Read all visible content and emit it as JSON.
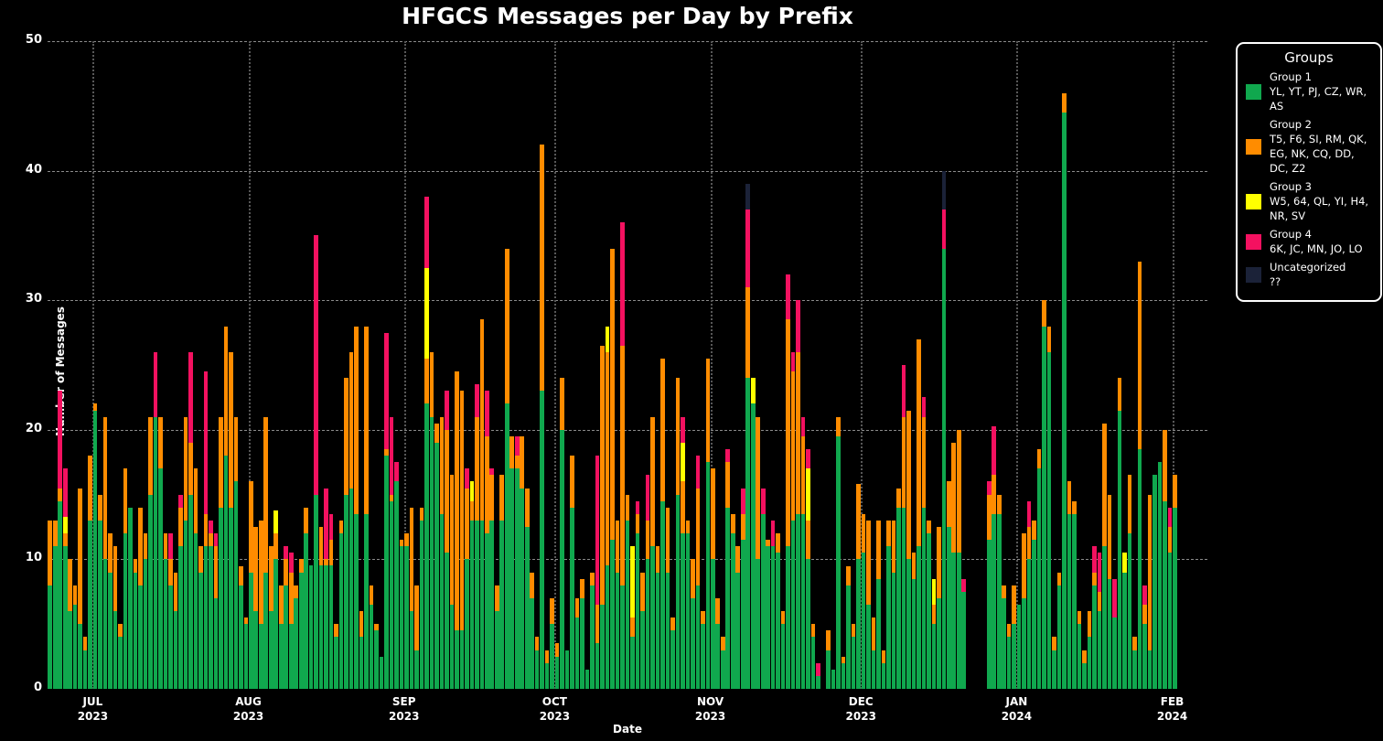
{
  "title": "HFGCS Messages per Day by Prefix",
  "axes": {
    "xlabel": "Date",
    "ylabel": "Number of Messages"
  },
  "legend": {
    "title": "Groups",
    "entries": [
      {
        "name": "Group 1",
        "prefixes": "YL, YT, PJ, CZ, WR, AS",
        "color": "#10a84e"
      },
      {
        "name": "Group 2",
        "prefixes": "T5, F6, SI, RM, QK, EG, NK, CQ, DD, DC, Z2",
        "color": "#ff8c00"
      },
      {
        "name": "Group 3",
        "prefixes": "W5, 64, QL, YI, H4, NR, SV",
        "color": "#ffff00"
      },
      {
        "name": "Group 4",
        "prefixes": "6K, JC, MN, JO, LO",
        "color": "#f41160"
      },
      {
        "name": "Uncategorized",
        "prefixes": "??",
        "color": "#1b2238"
      }
    ]
  },
  "chart_data": {
    "type": "bar",
    "stacked": true,
    "title": "HFGCS Messages per Day by Prefix",
    "xlabel": "Date",
    "ylabel": "Number of Messages",
    "ylim": [
      0,
      50
    ],
    "y_ticks": [
      0,
      10,
      20,
      30,
      40,
      50
    ],
    "grid": true,
    "legend_position": "right",
    "axis_days": 231,
    "x_ticks": [
      {
        "label": "JUL",
        "year": "2023",
        "day": 9
      },
      {
        "label": "AUG",
        "year": "2023",
        "day": 40
      },
      {
        "label": "SEP",
        "year": "2023",
        "day": 71
      },
      {
        "label": "OCT",
        "year": "2023",
        "day": 101
      },
      {
        "label": "NOV",
        "year": "2023",
        "day": 132
      },
      {
        "label": "DEC",
        "year": "2023",
        "day": 162
      },
      {
        "label": "JAN",
        "year": "2024",
        "day": 193
      },
      {
        "label": "FEB",
        "year": "2024",
        "day": 224
      }
    ],
    "series_names": [
      "Group 1",
      "Group 2",
      "Group 3",
      "Group 4",
      "Uncategorized"
    ],
    "series_colors": [
      "#10a84e",
      "#ff8c00",
      "#ffff00",
      "#f41160",
      "#1b2238"
    ],
    "days": [
      [
        8,
        5,
        0,
        0,
        0
      ],
      [
        11,
        2,
        0,
        0,
        0
      ],
      [
        14.5,
        1,
        0,
        7.5,
        0
      ],
      [
        11,
        1,
        1.3,
        3.7,
        0
      ],
      [
        6,
        4,
        0,
        0,
        0
      ],
      [
        6.5,
        1.5,
        0,
        0,
        0
      ],
      [
        5,
        10.5,
        0,
        0,
        0
      ],
      [
        3,
        1,
        0,
        0,
        0
      ],
      [
        13,
        5,
        0,
        0,
        0
      ],
      [
        21.5,
        0.5,
        0,
        0,
        0
      ],
      [
        13,
        2,
        0,
        0,
        0
      ],
      [
        10,
        11,
        0,
        0,
        0
      ],
      [
        9,
        3,
        0,
        0,
        0
      ],
      [
        6,
        5,
        0,
        0,
        0
      ],
      [
        4,
        1,
        0,
        0,
        0
      ],
      [
        12,
        5,
        0,
        0,
        0
      ],
      [
        14,
        0,
        0,
        0,
        0
      ],
      [
        9,
        1,
        0,
        0,
        0
      ],
      [
        8,
        6,
        0,
        0,
        0
      ],
      [
        10,
        2,
        0,
        0,
        0
      ],
      [
        15,
        6,
        0,
        0,
        0
      ],
      [
        21,
        0,
        0,
        5,
        0
      ],
      [
        17,
        4,
        0,
        0,
        0
      ],
      [
        10,
        2,
        0,
        0,
        0
      ],
      [
        8,
        2,
        0,
        2,
        0
      ],
      [
        6,
        3,
        0,
        0,
        0
      ],
      [
        11,
        3,
        0,
        1,
        0
      ],
      [
        13,
        8,
        0,
        0,
        0
      ],
      [
        15,
        4,
        0,
        7,
        0
      ],
      [
        12,
        5,
        0,
        0,
        0
      ],
      [
        9,
        2,
        0,
        0,
        0
      ],
      [
        11,
        2.5,
        0,
        11,
        0
      ],
      [
        11,
        1,
        0,
        1,
        0
      ],
      [
        7,
        4,
        0,
        1,
        0
      ],
      [
        14,
        7,
        0,
        0,
        0
      ],
      [
        18,
        10,
        0,
        0,
        0
      ],
      [
        14,
        12,
        0,
        0,
        0
      ],
      [
        16,
        5,
        0,
        0,
        0
      ],
      [
        8,
        1.5,
        0,
        0,
        0
      ],
      [
        5,
        0.5,
        0,
        0,
        0
      ],
      [
        9,
        7,
        0,
        0,
        0
      ],
      [
        6,
        6.5,
        0,
        0,
        0
      ],
      [
        5,
        8,
        0,
        0,
        0
      ],
      [
        9,
        12,
        0,
        0,
        0
      ],
      [
        6,
        5,
        0,
        0,
        0
      ],
      [
        10,
        2,
        1.8,
        0,
        0
      ],
      [
        5,
        3,
        0,
        0,
        0
      ],
      [
        8,
        2,
        0,
        1,
        0
      ],
      [
        5,
        4,
        0,
        1.5,
        0
      ],
      [
        7,
        1,
        0,
        0,
        0
      ],
      [
        9,
        1,
        0,
        0,
        0
      ],
      [
        12,
        2,
        0,
        0,
        0
      ],
      [
        9.5,
        0,
        0,
        0,
        0
      ],
      [
        15,
        0,
        0,
        20,
        0
      ],
      [
        9.5,
        3,
        0,
        0,
        0
      ],
      [
        9.5,
        0.5,
        0,
        5.5,
        0
      ],
      [
        9.5,
        2,
        0,
        2,
        0
      ],
      [
        4,
        1,
        0,
        0,
        0
      ],
      [
        12,
        1,
        0,
        0,
        0
      ],
      [
        15,
        9,
        0,
        0,
        0
      ],
      [
        15.5,
        10.5,
        0,
        0,
        0
      ],
      [
        13.5,
        14.5,
        0,
        0,
        0
      ],
      [
        4,
        2,
        0,
        0,
        0
      ],
      [
        13.5,
        14.5,
        0,
        0,
        0
      ],
      [
        6.5,
        1.5,
        0,
        0,
        0
      ],
      [
        4.5,
        0.5,
        0,
        0,
        0
      ],
      [
        2.5,
        0,
        0,
        0,
        0
      ],
      [
        18,
        0.5,
        0,
        9,
        0
      ],
      [
        14.5,
        0.5,
        0,
        6,
        0
      ],
      [
        16,
        0,
        0,
        1.5,
        0
      ],
      [
        11,
        0.5,
        0,
        0,
        0
      ],
      [
        11,
        1,
        0,
        0,
        0
      ],
      [
        6,
        8,
        0,
        0,
        0
      ],
      [
        3,
        5,
        0,
        0,
        0
      ],
      [
        13,
        1,
        0,
        0,
        0
      ],
      [
        22,
        3.5,
        7,
        5.5,
        0
      ],
      [
        21,
        5,
        0,
        0,
        0
      ],
      [
        19,
        1.5,
        0,
        0,
        0
      ],
      [
        13.5,
        7.5,
        0,
        0,
        0
      ],
      [
        10.5,
        9.5,
        0,
        3,
        0
      ],
      [
        6.5,
        10,
        0,
        0,
        0
      ],
      [
        4.5,
        20,
        0,
        0,
        0
      ],
      [
        4.5,
        18.5,
        0,
        0,
        0
      ],
      [
        10,
        5.5,
        0,
        1.5,
        0
      ],
      [
        13,
        1.5,
        1.5,
        0,
        0
      ],
      [
        13,
        8,
        0,
        2.5,
        0
      ],
      [
        13,
        15.5,
        0,
        0,
        0
      ],
      [
        12,
        7.5,
        0,
        3.5,
        0
      ],
      [
        13,
        3.5,
        0,
        0.5,
        0
      ],
      [
        6,
        2,
        0,
        0,
        0
      ],
      [
        13,
        3.5,
        0,
        0,
        0
      ],
      [
        22,
        12,
        0,
        0,
        0
      ],
      [
        17,
        2.5,
        0,
        0,
        0
      ],
      [
        17,
        1,
        0,
        1.5,
        0
      ],
      [
        15.5,
        4,
        0,
        0,
        0
      ],
      [
        12.5,
        3,
        0,
        0,
        0
      ],
      [
        7,
        2,
        0,
        0,
        0
      ],
      [
        3,
        1,
        0,
        0,
        0
      ],
      [
        23,
        19,
        0,
        0,
        0
      ],
      [
        2,
        1,
        0,
        0,
        0
      ],
      [
        5,
        2,
        0,
        0,
        0
      ],
      [
        2.5,
        1,
        0,
        0,
        0
      ],
      [
        20,
        4,
        0,
        0,
        0
      ],
      [
        3,
        0,
        0,
        0,
        0
      ],
      [
        14,
        4,
        0,
        0,
        0
      ],
      [
        5.5,
        1.5,
        0,
        0,
        0
      ],
      [
        7,
        1.5,
        0,
        0,
        0
      ],
      [
        1.5,
        0,
        0,
        0,
        0
      ],
      [
        8,
        1,
        0,
        0,
        0
      ],
      [
        3.5,
        3,
        0,
        11.5,
        0
      ],
      [
        6.5,
        20,
        0,
        0,
        0
      ],
      [
        9.5,
        16.5,
        2,
        0,
        0
      ],
      [
        11.5,
        22.5,
        0,
        0,
        0
      ],
      [
        9,
        4,
        0,
        0,
        0
      ],
      [
        8,
        18.5,
        0,
        9.5,
        0
      ],
      [
        13,
        2,
        0,
        0,
        0
      ],
      [
        4,
        1.5,
        5.5,
        0,
        0
      ],
      [
        12,
        1.5,
        0,
        1,
        0
      ],
      [
        6,
        3,
        0,
        0,
        0
      ],
      [
        10,
        3,
        0,
        3.5,
        0
      ],
      [
        11,
        10,
        0,
        0,
        0
      ],
      [
        9,
        2,
        0,
        0,
        0
      ],
      [
        14.5,
        11,
        0,
        0,
        0
      ],
      [
        9,
        5,
        0,
        0,
        0
      ],
      [
        4.5,
        1,
        0,
        0,
        0
      ],
      [
        15,
        9,
        0,
        0,
        0
      ],
      [
        12,
        4,
        3,
        2,
        0
      ],
      [
        12,
        1,
        0,
        0,
        0
      ],
      [
        7,
        3,
        0,
        0,
        0
      ],
      [
        8,
        7.5,
        0,
        2.5,
        0
      ],
      [
        5,
        1,
        0,
        0,
        0
      ],
      [
        17.5,
        8,
        0,
        0,
        0
      ],
      [
        10,
        7,
        0,
        0,
        0
      ],
      [
        5,
        2,
        0,
        0,
        0
      ],
      [
        3,
        1,
        0,
        0,
        0
      ],
      [
        14,
        3.5,
        0,
        1,
        0
      ],
      [
        12,
        1.5,
        0,
        0,
        0
      ],
      [
        9,
        2,
        0,
        0,
        0
      ],
      [
        11.5,
        2,
        0,
        2,
        0
      ],
      [
        24,
        7,
        0,
        6,
        2
      ],
      [
        22,
        0,
        2,
        0,
        0
      ],
      [
        10,
        11,
        0,
        0,
        0
      ],
      [
        13.5,
        0,
        0,
        2,
        0
      ],
      [
        11,
        0.5,
        0,
        0,
        0
      ],
      [
        11,
        0,
        0,
        2,
        0
      ],
      [
        10.5,
        1.5,
        0,
        0,
        0
      ],
      [
        5,
        1,
        0,
        0,
        0
      ],
      [
        11,
        17.5,
        0,
        3.5,
        0
      ],
      [
        13,
        11.5,
        0,
        1.5,
        0
      ],
      [
        13.5,
        12.5,
        0,
        4,
        0
      ],
      [
        13.5,
        6,
        0,
        1.5,
        0
      ],
      [
        10,
        3,
        4,
        1.5,
        0
      ],
      [
        4,
        1,
        0,
        0,
        0
      ],
      [
        1,
        0,
        0,
        1,
        0
      ],
      [
        0,
        0,
        0,
        0,
        0
      ],
      [
        3,
        1.5,
        0,
        0,
        0
      ],
      [
        1.5,
        0,
        0,
        0,
        0
      ],
      [
        19.5,
        1.5,
        0,
        0,
        0
      ],
      [
        2,
        0.5,
        0,
        0,
        0
      ],
      [
        8,
        1.5,
        0,
        0,
        0
      ],
      [
        4,
        1,
        0,
        0,
        0
      ],
      [
        10,
        5.8,
        0,
        0,
        0
      ],
      [
        10.5,
        3,
        0,
        0,
        0
      ],
      [
        6.5,
        6.5,
        0,
        0,
        0
      ],
      [
        3,
        2.5,
        0,
        0,
        0
      ],
      [
        8.5,
        4.5,
        0,
        0,
        0
      ],
      [
        2,
        1,
        0,
        0,
        0
      ],
      [
        11,
        2,
        0,
        0,
        0
      ],
      [
        9,
        4,
        0,
        0,
        0
      ],
      [
        14,
        1.5,
        0,
        0,
        0
      ],
      [
        14,
        7,
        0,
        4,
        0
      ],
      [
        10,
        11.5,
        0,
        0,
        0
      ],
      [
        8.5,
        2,
        0,
        0,
        0
      ],
      [
        11,
        16,
        0,
        0,
        0
      ],
      [
        14,
        7,
        0,
        1.5,
        0
      ],
      [
        12,
        1,
        0,
        0,
        0
      ],
      [
        5,
        1.5,
        2,
        0,
        0
      ],
      [
        7,
        5.5,
        0,
        0,
        0
      ],
      [
        34,
        0,
        0,
        3,
        3
      ],
      [
        12.5,
        3.5,
        0,
        0,
        0
      ],
      [
        10.5,
        8.5,
        0,
        0,
        0
      ],
      [
        10.5,
        9.5,
        0,
        0,
        0
      ],
      [
        7.5,
        0,
        0,
        1,
        0
      ],
      [
        0,
        0,
        0,
        0,
        0
      ],
      [
        0,
        0,
        0,
        0,
        0
      ],
      [
        0,
        0,
        0,
        0,
        0
      ],
      [
        0,
        0,
        0,
        0,
        0
      ],
      [
        11.5,
        3.5,
        0,
        1,
        0
      ],
      [
        13.5,
        3,
        0,
        3.8,
        0
      ],
      [
        13.5,
        1.5,
        0,
        0,
        0
      ],
      [
        7,
        1,
        0,
        0,
        0
      ],
      [
        4,
        1,
        0,
        0,
        0
      ],
      [
        5,
        3,
        0,
        0,
        0
      ],
      [
        6.5,
        0,
        0,
        0,
        0
      ],
      [
        7,
        5,
        0,
        0,
        0
      ],
      [
        10,
        2.5,
        0,
        2,
        0
      ],
      [
        11.5,
        1.5,
        0,
        0,
        0
      ],
      [
        17,
        1.5,
        0,
        0,
        0
      ],
      [
        28,
        2,
        0,
        0,
        0
      ],
      [
        26,
        2,
        0,
        0,
        0
      ],
      [
        3,
        1,
        0,
        0,
        0
      ],
      [
        8,
        1,
        0,
        0,
        0
      ],
      [
        44.5,
        1.5,
        0,
        0,
        0
      ],
      [
        13.5,
        2.5,
        0,
        0,
        0
      ],
      [
        13.5,
        1,
        0,
        0,
        0
      ],
      [
        5,
        1,
        0,
        0,
        0
      ],
      [
        2,
        1,
        0,
        0,
        0
      ],
      [
        4,
        2,
        0,
        0,
        0
      ],
      [
        8,
        1,
        0,
        2,
        0
      ],
      [
        6,
        1.5,
        0,
        3,
        0
      ],
      [
        11,
        9.5,
        0,
        0,
        0
      ],
      [
        8.5,
        6.5,
        0,
        0,
        0
      ],
      [
        5.5,
        0,
        0,
        3,
        0
      ],
      [
        21.5,
        2.5,
        0,
        0,
        0
      ],
      [
        9,
        0,
        1.5,
        0,
        0
      ],
      [
        12,
        4.5,
        0,
        0,
        0
      ],
      [
        3,
        1,
        0,
        0,
        0
      ],
      [
        18.5,
        14.5,
        0,
        0,
        0
      ],
      [
        5,
        1.5,
        0,
        1.5,
        0
      ],
      [
        3,
        12,
        0,
        0,
        0
      ],
      [
        16.5,
        0,
        0,
        0,
        0
      ],
      [
        17.5,
        0,
        0,
        0,
        0
      ],
      [
        14.5,
        5.5,
        0,
        0,
        0
      ],
      [
        10.5,
        2,
        0,
        1.5,
        0
      ],
      [
        14,
        2.5,
        0,
        0,
        0
      ]
    ]
  }
}
